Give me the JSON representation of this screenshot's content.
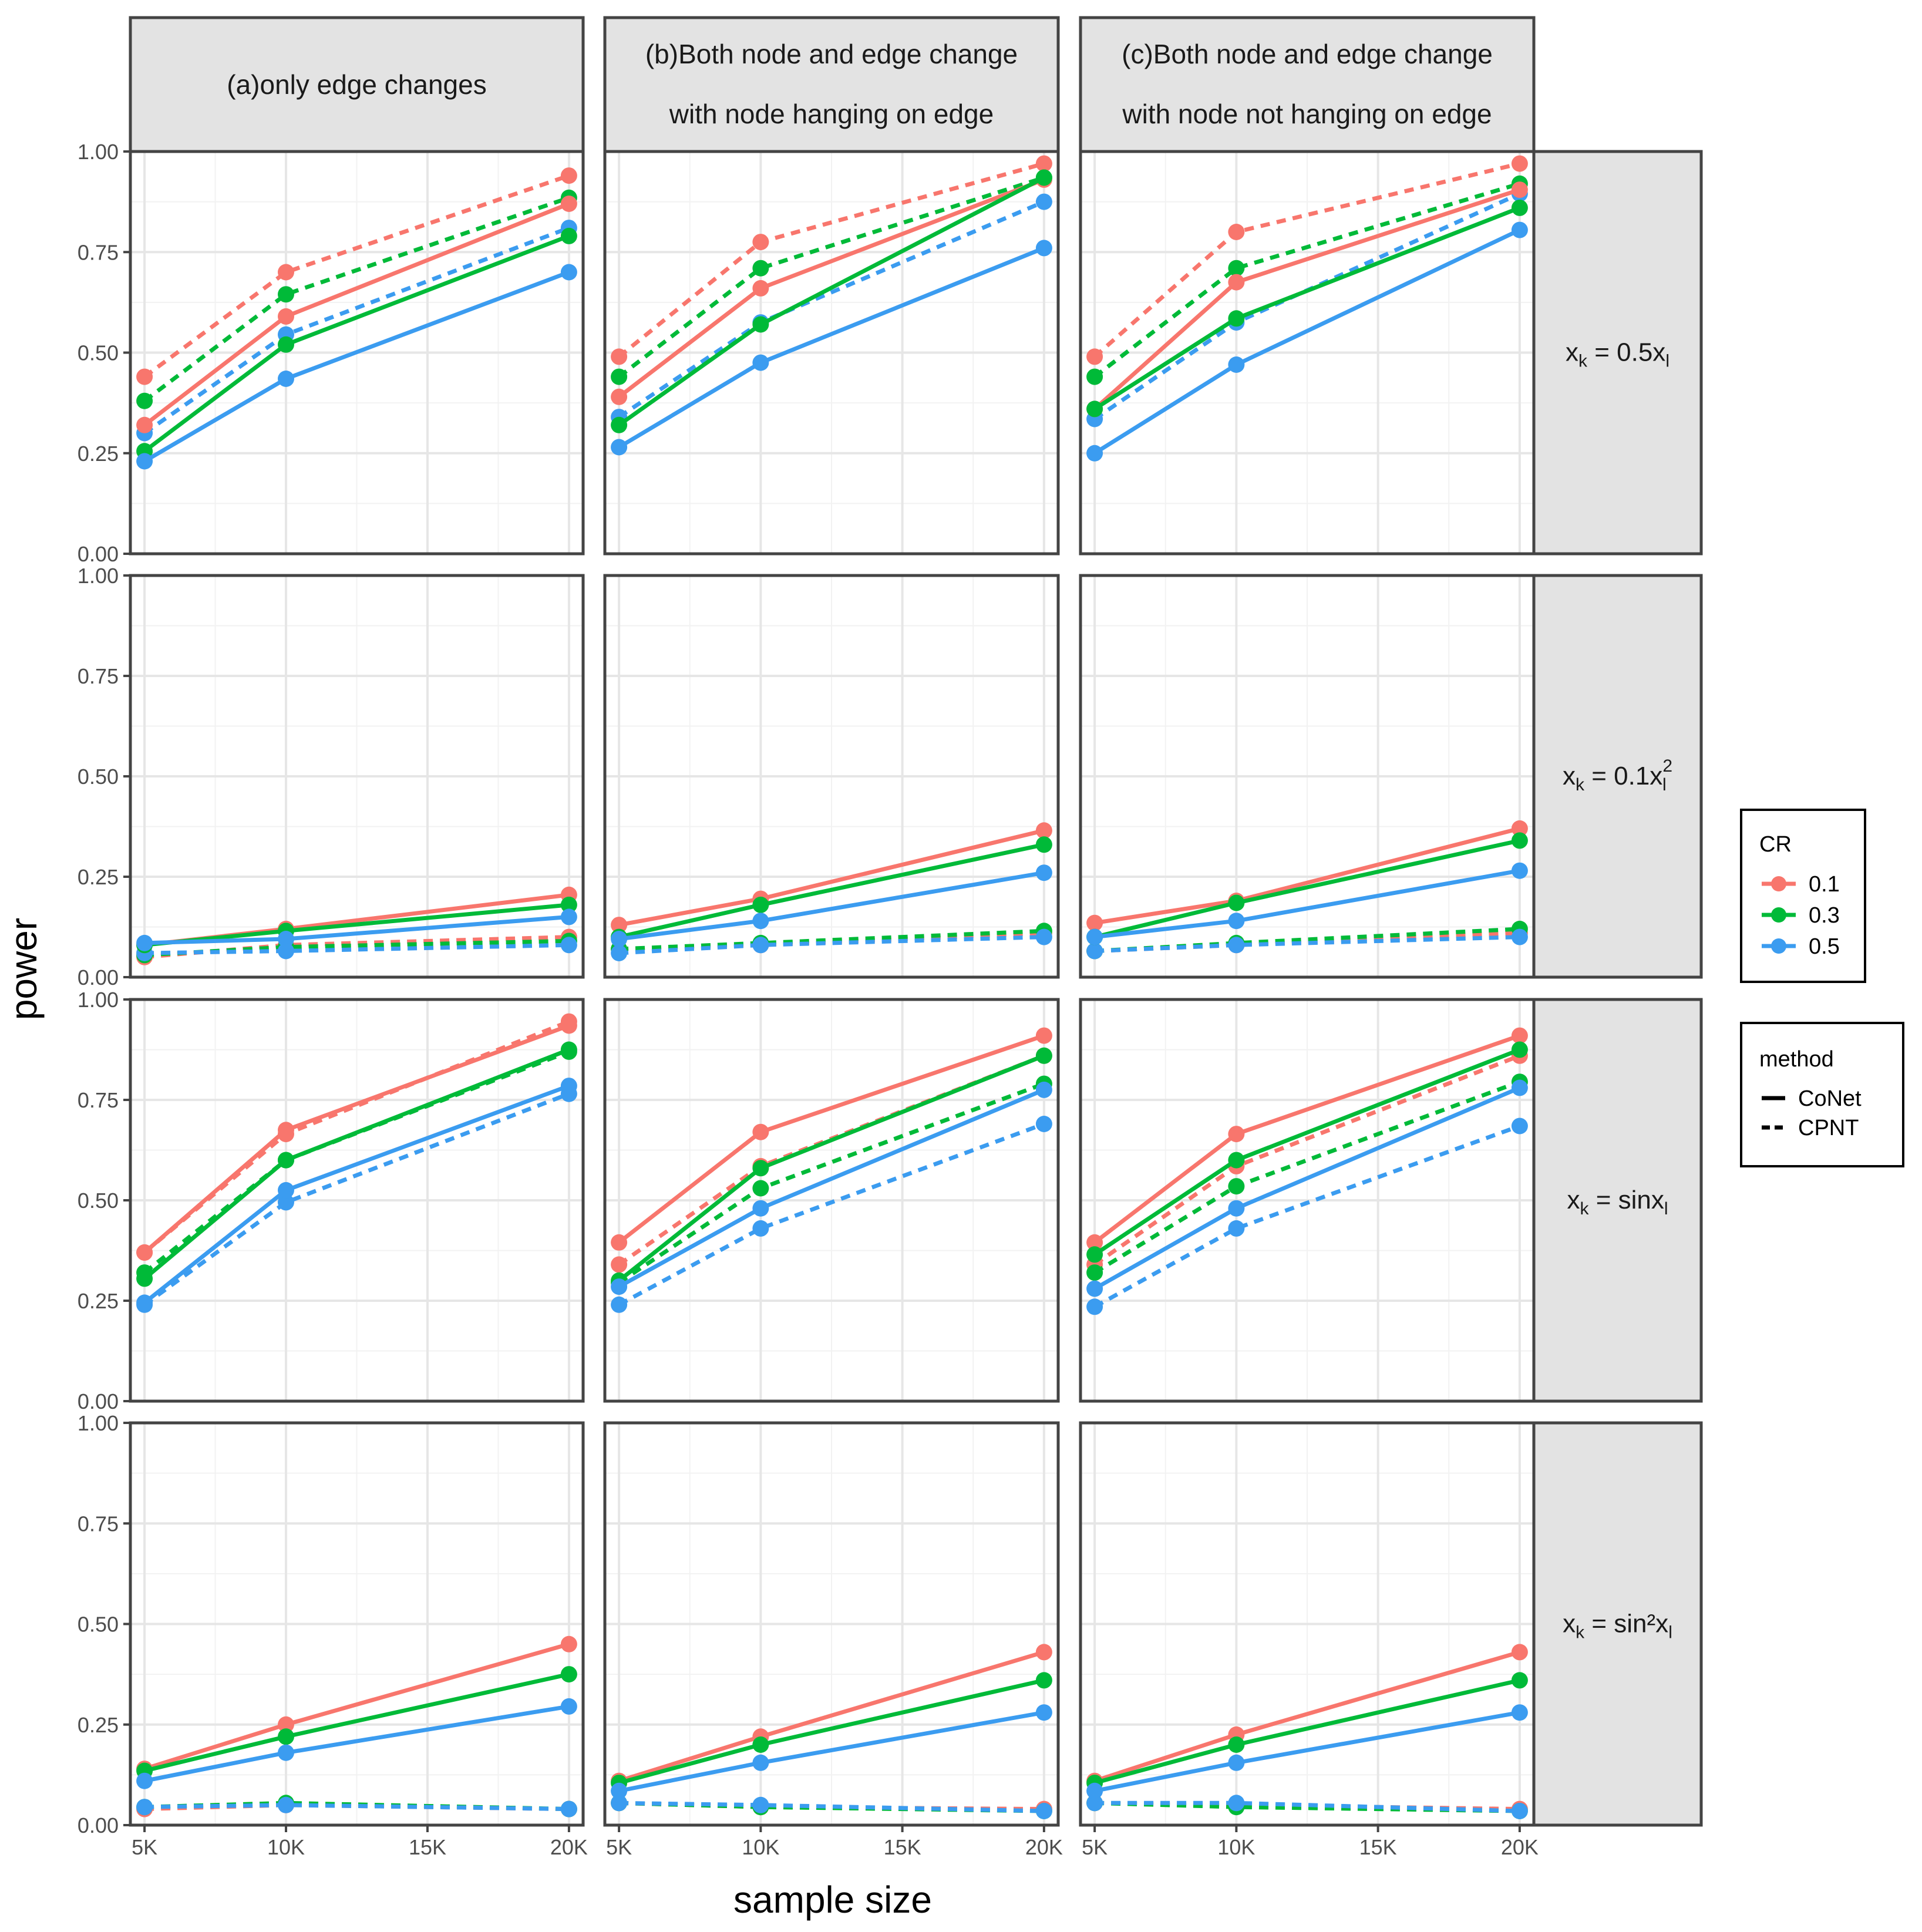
{
  "chart_data": {
    "type": "line",
    "xlabel": "sample size",
    "ylabel": "power",
    "x": [
      5,
      10,
      20
    ],
    "x_unit": "K",
    "x_ticks": [
      5,
      10,
      15,
      20
    ],
    "x_tick_labels": [
      "5K",
      "10K",
      "15K",
      "20K"
    ],
    "ylim": [
      0,
      1
    ],
    "y_ticks": [
      0,
      0.25,
      0.5,
      0.75,
      1
    ],
    "y_tick_labels": [
      "0.00",
      "0.25",
      "0.50",
      "0.75",
      "1.00"
    ],
    "grid": true,
    "legend_position": "right",
    "col_facets": [
      "(a)only edge changes",
      "(b)Both node and edge change|with node hanging on edge",
      "(c)Both node and edge change|with node not hanging on edge"
    ],
    "row_facets": [
      {
        "base": "x",
        "sub": "k",
        "mid": " = 0.5x",
        "sub2": "l",
        "sup2": ""
      },
      {
        "base": "x",
        "sub": "k",
        "mid": " = 0.1x",
        "sub2": "l",
        "sup2": "2"
      },
      {
        "base": "x",
        "sub": "k",
        "mid": " = sinx",
        "sub2": "l",
        "sup2": ""
      },
      {
        "base": "x",
        "sub": "k",
        "mid": " = sin²x",
        "sub2": "l",
        "sup2": ""
      }
    ],
    "legend_cr": {
      "title": "CR",
      "items": [
        {
          "label": "0.1",
          "color": "#f8766d"
        },
        {
          "label": "0.3",
          "color": "#00ba38"
        },
        {
          "label": "0.5",
          "color": "#3b9cf0"
        }
      ]
    },
    "legend_method": {
      "title": "method",
      "items": [
        {
          "label": "CoNet",
          "dash": "solid"
        },
        {
          "label": "CPNT",
          "dash": "dashed"
        }
      ]
    },
    "series": [
      {
        "panel": [
          0,
          0
        ],
        "cr": "0.1",
        "method": "CoNet",
        "values": [
          0.32,
          0.59,
          0.87
        ]
      },
      {
        "panel": [
          0,
          0
        ],
        "cr": "0.3",
        "method": "CoNet",
        "values": [
          0.255,
          0.52,
          0.79
        ]
      },
      {
        "panel": [
          0,
          0
        ],
        "cr": "0.5",
        "method": "CoNet",
        "values": [
          0.23,
          0.435,
          0.7
        ]
      },
      {
        "panel": [
          0,
          0
        ],
        "cr": "0.1",
        "method": "CPNT",
        "values": [
          0.44,
          0.7,
          0.94
        ]
      },
      {
        "panel": [
          0,
          0
        ],
        "cr": "0.3",
        "method": "CPNT",
        "values": [
          0.38,
          0.645,
          0.885
        ]
      },
      {
        "panel": [
          0,
          0
        ],
        "cr": "0.5",
        "method": "CPNT",
        "values": [
          0.3,
          0.545,
          0.81
        ]
      },
      {
        "panel": [
          0,
          1
        ],
        "cr": "0.1",
        "method": "CoNet",
        "values": [
          0.39,
          0.66,
          0.93
        ]
      },
      {
        "panel": [
          0,
          1
        ],
        "cr": "0.3",
        "method": "CoNet",
        "values": [
          0.32,
          0.57,
          0.935
        ]
      },
      {
        "panel": [
          0,
          1
        ],
        "cr": "0.5",
        "method": "CoNet",
        "values": [
          0.265,
          0.475,
          0.76
        ]
      },
      {
        "panel": [
          0,
          1
        ],
        "cr": "0.1",
        "method": "CPNT",
        "values": [
          0.49,
          0.775,
          0.97
        ]
      },
      {
        "panel": [
          0,
          1
        ],
        "cr": "0.3",
        "method": "CPNT",
        "values": [
          0.44,
          0.71,
          0.935
        ]
      },
      {
        "panel": [
          0,
          1
        ],
        "cr": "0.5",
        "method": "CPNT",
        "values": [
          0.34,
          0.575,
          0.875
        ]
      },
      {
        "panel": [
          0,
          2
        ],
        "cr": "0.1",
        "method": "CoNet",
        "values": [
          0.36,
          0.675,
          0.905
        ]
      },
      {
        "panel": [
          0,
          2
        ],
        "cr": "0.3",
        "method": "CoNet",
        "values": [
          0.36,
          0.585,
          0.86
        ]
      },
      {
        "panel": [
          0,
          2
        ],
        "cr": "0.5",
        "method": "CoNet",
        "values": [
          0.25,
          0.47,
          0.805
        ]
      },
      {
        "panel": [
          0,
          2
        ],
        "cr": "0.1",
        "method": "CPNT",
        "values": [
          0.49,
          0.8,
          0.97
        ]
      },
      {
        "panel": [
          0,
          2
        ],
        "cr": "0.3",
        "method": "CPNT",
        "values": [
          0.44,
          0.71,
          0.92
        ]
      },
      {
        "panel": [
          0,
          2
        ],
        "cr": "0.5",
        "method": "CPNT",
        "values": [
          0.335,
          0.575,
          0.895
        ]
      },
      {
        "panel": [
          1,
          0
        ],
        "cr": "0.1",
        "method": "CoNet",
        "values": [
          0.08,
          0.12,
          0.205
        ]
      },
      {
        "panel": [
          1,
          0
        ],
        "cr": "0.3",
        "method": "CoNet",
        "values": [
          0.08,
          0.115,
          0.18
        ]
      },
      {
        "panel": [
          1,
          0
        ],
        "cr": "0.5",
        "method": "CoNet",
        "values": [
          0.085,
          0.095,
          0.15
        ]
      },
      {
        "panel": [
          1,
          0
        ],
        "cr": "0.1",
        "method": "CPNT",
        "values": [
          0.05,
          0.08,
          0.1
        ]
      },
      {
        "panel": [
          1,
          0
        ],
        "cr": "0.3",
        "method": "CPNT",
        "values": [
          0.055,
          0.075,
          0.09
        ]
      },
      {
        "panel": [
          1,
          0
        ],
        "cr": "0.5",
        "method": "CPNT",
        "values": [
          0.06,
          0.065,
          0.08
        ]
      },
      {
        "panel": [
          1,
          1
        ],
        "cr": "0.1",
        "method": "CoNet",
        "values": [
          0.13,
          0.195,
          0.365
        ]
      },
      {
        "panel": [
          1,
          1
        ],
        "cr": "0.3",
        "method": "CoNet",
        "values": [
          0.1,
          0.18,
          0.33
        ]
      },
      {
        "panel": [
          1,
          1
        ],
        "cr": "0.5",
        "method": "CoNet",
        "values": [
          0.095,
          0.14,
          0.26
        ]
      },
      {
        "panel": [
          1,
          1
        ],
        "cr": "0.1",
        "method": "CPNT",
        "values": [
          0.07,
          0.08,
          0.11
        ]
      },
      {
        "panel": [
          1,
          1
        ],
        "cr": "0.3",
        "method": "CPNT",
        "values": [
          0.07,
          0.085,
          0.115
        ]
      },
      {
        "panel": [
          1,
          1
        ],
        "cr": "0.5",
        "method": "CPNT",
        "values": [
          0.06,
          0.08,
          0.1
        ]
      },
      {
        "panel": [
          1,
          2
        ],
        "cr": "0.1",
        "method": "CoNet",
        "values": [
          0.135,
          0.19,
          0.37
        ]
      },
      {
        "panel": [
          1,
          2
        ],
        "cr": "0.3",
        "method": "CoNet",
        "values": [
          0.1,
          0.185,
          0.34
        ]
      },
      {
        "panel": [
          1,
          2
        ],
        "cr": "0.5",
        "method": "CoNet",
        "values": [
          0.1,
          0.14,
          0.265
        ]
      },
      {
        "panel": [
          1,
          2
        ],
        "cr": "0.1",
        "method": "CPNT",
        "values": [
          0.065,
          0.08,
          0.11
        ]
      },
      {
        "panel": [
          1,
          2
        ],
        "cr": "0.3",
        "method": "CPNT",
        "values": [
          0.065,
          0.085,
          0.12
        ]
      },
      {
        "panel": [
          1,
          2
        ],
        "cr": "0.5",
        "method": "CPNT",
        "values": [
          0.065,
          0.08,
          0.1
        ]
      },
      {
        "panel": [
          2,
          0
        ],
        "cr": "0.1",
        "method": "CoNet",
        "values": [
          0.37,
          0.675,
          0.935
        ]
      },
      {
        "panel": [
          2,
          0
        ],
        "cr": "0.3",
        "method": "CoNet",
        "values": [
          0.305,
          0.6,
          0.875
        ]
      },
      {
        "panel": [
          2,
          0
        ],
        "cr": "0.5",
        "method": "CoNet",
        "values": [
          0.245,
          0.525,
          0.785
        ]
      },
      {
        "panel": [
          2,
          0
        ],
        "cr": "0.1",
        "method": "CPNT",
        "values": [
          0.37,
          0.665,
          0.945
        ]
      },
      {
        "panel": [
          2,
          0
        ],
        "cr": "0.3",
        "method": "CPNT",
        "values": [
          0.32,
          0.6,
          0.87
        ]
      },
      {
        "panel": [
          2,
          0
        ],
        "cr": "0.5",
        "method": "CPNT",
        "values": [
          0.24,
          0.495,
          0.765
        ]
      },
      {
        "panel": [
          2,
          1
        ],
        "cr": "0.1",
        "method": "CoNet",
        "values": [
          0.395,
          0.67,
          0.91
        ]
      },
      {
        "panel": [
          2,
          1
        ],
        "cr": "0.3",
        "method": "CoNet",
        "values": [
          0.3,
          0.58,
          0.86
        ]
      },
      {
        "panel": [
          2,
          1
        ],
        "cr": "0.5",
        "method": "CoNet",
        "values": [
          0.285,
          0.48,
          0.775
        ]
      },
      {
        "panel": [
          2,
          1
        ],
        "cr": "0.1",
        "method": "CPNT",
        "values": [
          0.34,
          0.585,
          0.86
        ]
      },
      {
        "panel": [
          2,
          1
        ],
        "cr": "0.3",
        "method": "CPNT",
        "values": [
          0.295,
          0.53,
          0.79
        ]
      },
      {
        "panel": [
          2,
          1
        ],
        "cr": "0.5",
        "method": "CPNT",
        "values": [
          0.24,
          0.43,
          0.69
        ]
      },
      {
        "panel": [
          2,
          2
        ],
        "cr": "0.1",
        "method": "CoNet",
        "values": [
          0.395,
          0.665,
          0.91
        ]
      },
      {
        "panel": [
          2,
          2
        ],
        "cr": "0.3",
        "method": "CoNet",
        "values": [
          0.365,
          0.6,
          0.875
        ]
      },
      {
        "panel": [
          2,
          2
        ],
        "cr": "0.5",
        "method": "CoNet",
        "values": [
          0.28,
          0.48,
          0.78
        ]
      },
      {
        "panel": [
          2,
          2
        ],
        "cr": "0.1",
        "method": "CPNT",
        "values": [
          0.34,
          0.585,
          0.86
        ]
      },
      {
        "panel": [
          2,
          2
        ],
        "cr": "0.3",
        "method": "CPNT",
        "values": [
          0.32,
          0.535,
          0.795
        ]
      },
      {
        "panel": [
          2,
          2
        ],
        "cr": "0.5",
        "method": "CPNT",
        "values": [
          0.235,
          0.43,
          0.685
        ]
      },
      {
        "panel": [
          3,
          0
        ],
        "cr": "0.1",
        "method": "CoNet",
        "values": [
          0.14,
          0.25,
          0.45
        ]
      },
      {
        "panel": [
          3,
          0
        ],
        "cr": "0.3",
        "method": "CoNet",
        "values": [
          0.135,
          0.22,
          0.375
        ]
      },
      {
        "panel": [
          3,
          0
        ],
        "cr": "0.5",
        "method": "CoNet",
        "values": [
          0.11,
          0.18,
          0.295
        ]
      },
      {
        "panel": [
          3,
          0
        ],
        "cr": "0.1",
        "method": "CPNT",
        "values": [
          0.04,
          0.05,
          0.04
        ]
      },
      {
        "panel": [
          3,
          0
        ],
        "cr": "0.3",
        "method": "CPNT",
        "values": [
          0.045,
          0.055,
          0.04
        ]
      },
      {
        "panel": [
          3,
          0
        ],
        "cr": "0.5",
        "method": "CPNT",
        "values": [
          0.045,
          0.05,
          0.04
        ]
      },
      {
        "panel": [
          3,
          1
        ],
        "cr": "0.1",
        "method": "CoNet",
        "values": [
          0.11,
          0.22,
          0.43
        ]
      },
      {
        "panel": [
          3,
          1
        ],
        "cr": "0.3",
        "method": "CoNet",
        "values": [
          0.105,
          0.2,
          0.36
        ]
      },
      {
        "panel": [
          3,
          1
        ],
        "cr": "0.5",
        "method": "CoNet",
        "values": [
          0.085,
          0.155,
          0.28
        ]
      },
      {
        "panel": [
          3,
          1
        ],
        "cr": "0.1",
        "method": "CPNT",
        "values": [
          0.055,
          0.045,
          0.04
        ]
      },
      {
        "panel": [
          3,
          1
        ],
        "cr": "0.3",
        "method": "CPNT",
        "values": [
          0.055,
          0.045,
          0.035
        ]
      },
      {
        "panel": [
          3,
          1
        ],
        "cr": "0.5",
        "method": "CPNT",
        "values": [
          0.055,
          0.05,
          0.035
        ]
      },
      {
        "panel": [
          3,
          2
        ],
        "cr": "0.1",
        "method": "CoNet",
        "values": [
          0.11,
          0.225,
          0.43
        ]
      },
      {
        "panel": [
          3,
          2
        ],
        "cr": "0.3",
        "method": "CoNet",
        "values": [
          0.105,
          0.2,
          0.36
        ]
      },
      {
        "panel": [
          3,
          2
        ],
        "cr": "0.5",
        "method": "CoNet",
        "values": [
          0.085,
          0.155,
          0.28
        ]
      },
      {
        "panel": [
          3,
          2
        ],
        "cr": "0.1",
        "method": "CPNT",
        "values": [
          0.055,
          0.05,
          0.04
        ]
      },
      {
        "panel": [
          3,
          2
        ],
        "cr": "0.3",
        "method": "CPNT",
        "values": [
          0.055,
          0.045,
          0.035
        ]
      },
      {
        "panel": [
          3,
          2
        ],
        "cr": "0.5",
        "method": "CPNT",
        "values": [
          0.055,
          0.055,
          0.035
        ]
      }
    ]
  }
}
